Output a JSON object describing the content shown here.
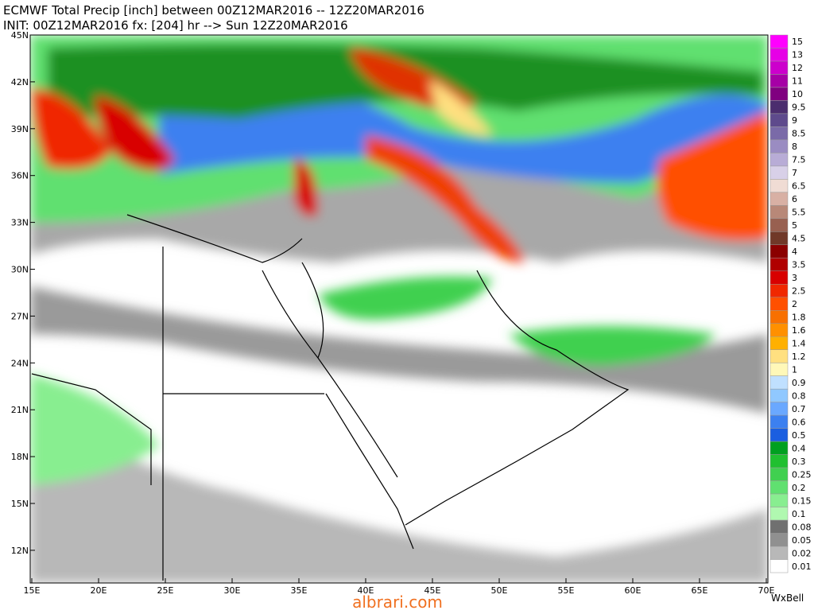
{
  "header": {
    "title": "ECMWF Total Precip [inch] between 00Z12MAR2016 -- 12Z20MAR2016",
    "subtitle": "INIT: 00Z12MAR2016 fx: [204] hr --> Sun 12Z20MAR2016"
  },
  "map": {
    "lat_labels": [
      "45N",
      "42N",
      "39N",
      "36N",
      "33N",
      "30N",
      "27N",
      "24N",
      "21N",
      "18N",
      "15N",
      "12N"
    ],
    "lon_labels": [
      "15E",
      "20E",
      "25E",
      "30E",
      "35E",
      "40E",
      "45E",
      "50E",
      "55E",
      "60E",
      "65E",
      "70E"
    ]
  },
  "legend": {
    "items": [
      {
        "label": "15",
        "color": "#ff00ff"
      },
      {
        "label": "13",
        "color": "#e600e6"
      },
      {
        "label": "12",
        "color": "#cc00cc"
      },
      {
        "label": "11",
        "color": "#a600a6"
      },
      {
        "label": "10",
        "color": "#800080"
      },
      {
        "label": "9.5",
        "color": "#4b2d6e"
      },
      {
        "label": "9",
        "color": "#5e4a8c"
      },
      {
        "label": "8.5",
        "color": "#7a6aa8"
      },
      {
        "label": "8",
        "color": "#9a8cc2"
      },
      {
        "label": "7.5",
        "color": "#b8acd6"
      },
      {
        "label": "7",
        "color": "#d8d0e8"
      },
      {
        "label": "6.5",
        "color": "#f0dcd4"
      },
      {
        "label": "6",
        "color": "#d8b0a4"
      },
      {
        "label": "5.5",
        "color": "#b88878"
      },
      {
        "label": "5",
        "color": "#986050"
      },
      {
        "label": "4.5",
        "color": "#703828"
      },
      {
        "label": "4",
        "color": "#8b0000"
      },
      {
        "label": "3.5",
        "color": "#b00000"
      },
      {
        "label": "3",
        "color": "#d80000"
      },
      {
        "label": "2.5",
        "color": "#f02800"
      },
      {
        "label": "2",
        "color": "#ff5000"
      },
      {
        "label": "1.8",
        "color": "#f87000"
      },
      {
        "label": "1.6",
        "color": "#ff9000"
      },
      {
        "label": "1.4",
        "color": "#ffb000"
      },
      {
        "label": "1.2",
        "color": "#ffe080"
      },
      {
        "label": "1",
        "color": "#fff8b8"
      },
      {
        "label": "0.9",
        "color": "#c0e0ff"
      },
      {
        "label": "0.8",
        "color": "#90c8ff"
      },
      {
        "label": "0.7",
        "color": "#6aa8ff"
      },
      {
        "label": "0.6",
        "color": "#3c80f0"
      },
      {
        "label": "0.5",
        "color": "#1a5ee0"
      },
      {
        "label": "0.4",
        "color": "#00a020"
      },
      {
        "label": "0.3",
        "color": "#20c030"
      },
      {
        "label": "0.25",
        "color": "#40d050"
      },
      {
        "label": "0.2",
        "color": "#60e070"
      },
      {
        "label": "0.15",
        "color": "#88ee90"
      },
      {
        "label": "0.1",
        "color": "#b0f8b0"
      },
      {
        "label": "0.08",
        "color": "#707070"
      },
      {
        "label": "0.05",
        "color": "#909090"
      },
      {
        "label": "0.02",
        "color": "#b8b8b8"
      },
      {
        "label": "0.01",
        "color": "#ffffff"
      }
    ]
  },
  "footer": {
    "brand": "WxBell",
    "watermark": "albrari.com"
  }
}
